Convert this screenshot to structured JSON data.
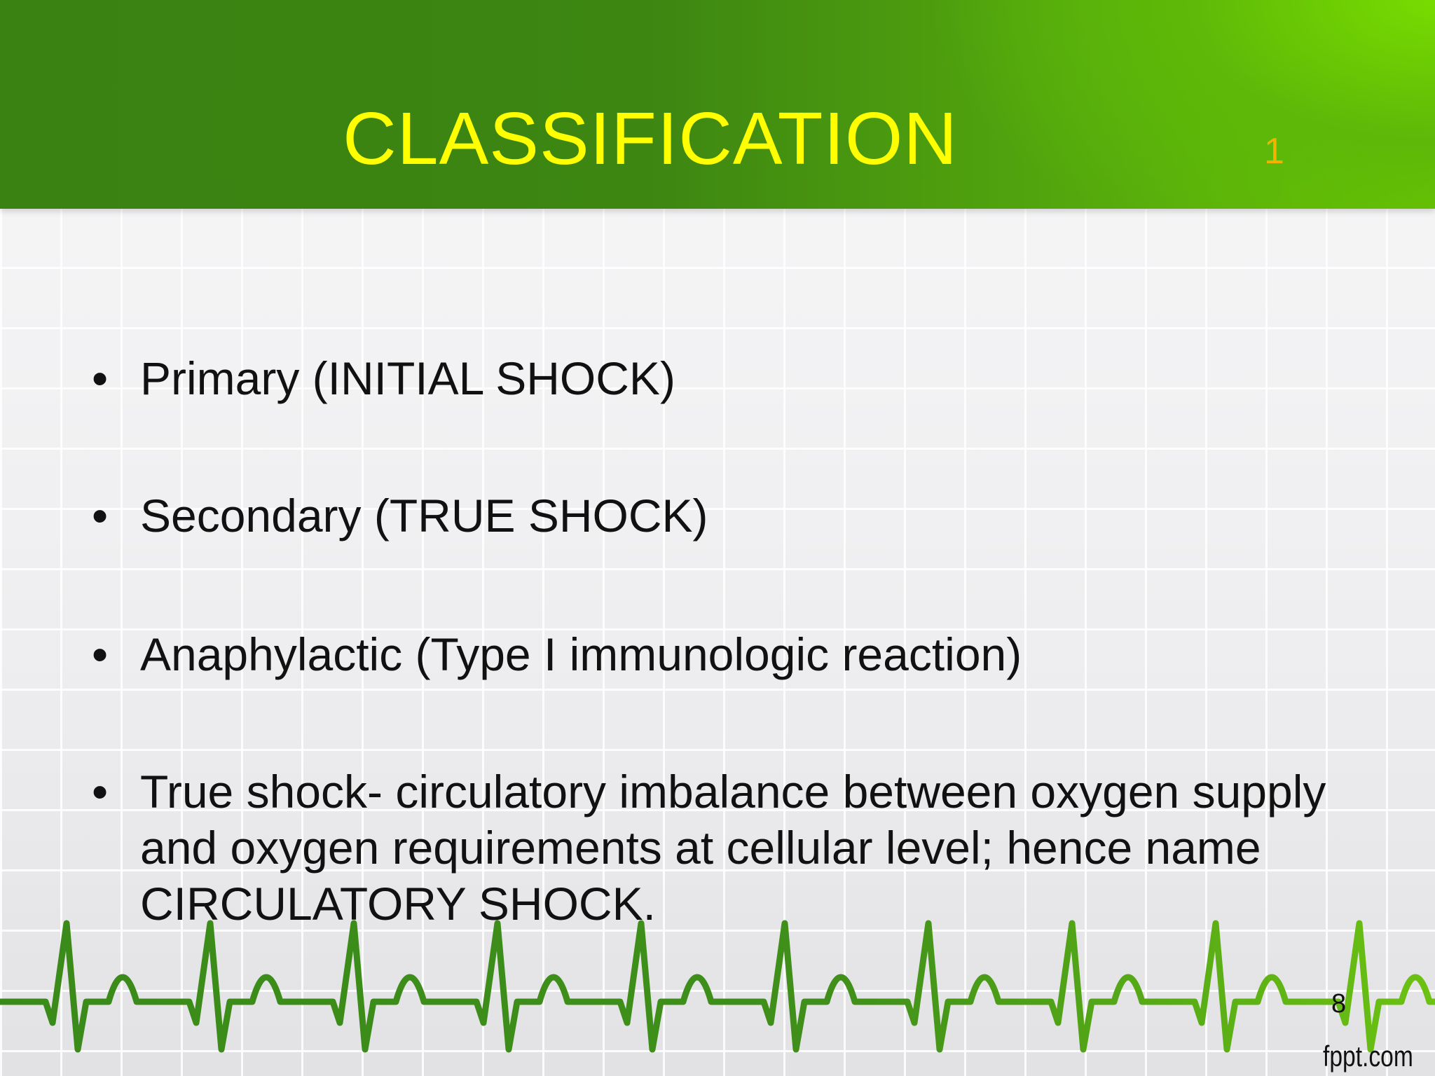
{
  "slide": {
    "title": "CLASSIFICATION",
    "title_note": "1",
    "bullets": [
      "Primary (INITIAL SHOCK)",
      "Secondary (TRUE SHOCK)",
      "Anaphylactic (Type I immunologic reaction)",
      "True shock- circulatory imbalance between oxygen supply and oxygen requirements at cellular level; hence name CIRCULATORY SHOCK."
    ],
    "bullet_glyph": "•",
    "page_number": "8",
    "brand": "fppt.com"
  },
  "colors": {
    "header": "#3d8612",
    "header_light": "#6cc800",
    "title": "#ffff00",
    "note": "#f2b200",
    "ecg": "#3f8f1a"
  },
  "decorations": {
    "ecg": "heartbeat-line"
  }
}
